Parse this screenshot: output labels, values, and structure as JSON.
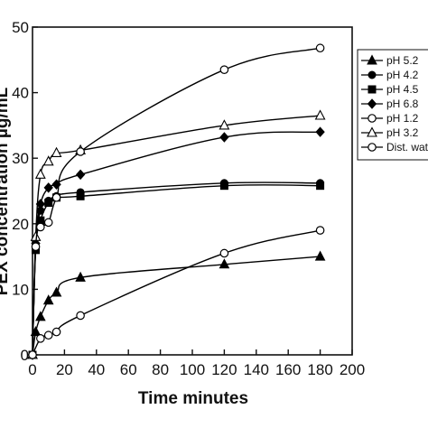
{
  "chart_data": {
    "type": "line",
    "title": "",
    "xlabel": "Time minutes",
    "ylabel": "PEX concentration µg/mL",
    "xlim": [
      0,
      200
    ],
    "ylim": [
      0,
      50
    ],
    "xticks": [
      "0",
      "20",
      "40",
      "60",
      "80",
      "100",
      "120",
      "140",
      "160",
      "180",
      "200"
    ],
    "yticks": [
      "0",
      "10",
      "20",
      "30",
      "40",
      "50"
    ],
    "grid": false,
    "legend_position": "right",
    "series": [
      {
        "name": "pH 5.2",
        "marker": "triangle-filled",
        "x": [
          0,
          2,
          5,
          10,
          15,
          30,
          120,
          180
        ],
        "y": [
          0,
          3.5,
          5.8,
          8.3,
          9.5,
          11.8,
          13.8,
          15.0
        ]
      },
      {
        "name": "pH 4.2",
        "marker": "circle-filled",
        "x": [
          0,
          2,
          5,
          10,
          15,
          30,
          120,
          180
        ],
        "y": [
          0,
          16.5,
          22.0,
          23.5,
          24.2,
          24.8,
          26.2,
          26.2
        ]
      },
      {
        "name": "pH 4.5",
        "marker": "square-filled",
        "x": [
          0,
          2,
          5,
          10,
          15,
          30,
          120,
          180
        ],
        "y": [
          0,
          16.0,
          20.5,
          23.2,
          24.0,
          24.2,
          25.8,
          25.8
        ]
      },
      {
        "name": "pH 6.8",
        "marker": "diamond-filled",
        "x": [
          0,
          2,
          5,
          10,
          15,
          30,
          120,
          180
        ],
        "y": [
          0,
          17.0,
          23.0,
          25.5,
          26.0,
          27.5,
          33.2,
          34.0
        ]
      },
      {
        "name": "pH 1.2",
        "marker": "circle-open",
        "x": [
          0,
          5,
          10,
          15,
          30,
          120,
          180
        ],
        "y": [
          0,
          2.5,
          3.0,
          3.5,
          6.0,
          15.5,
          19.0
        ]
      },
      {
        "name": "pH  3.2",
        "marker": "triangle-open",
        "x": [
          0,
          2,
          5,
          10,
          15,
          30,
          120,
          180
        ],
        "y": [
          0,
          18.0,
          27.5,
          29.5,
          30.8,
          31.2,
          35.0,
          36.5
        ]
      },
      {
        "name": "Dist. water",
        "marker": "circle-open",
        "x": [
          0,
          2,
          5,
          10,
          15,
          30,
          120,
          180
        ],
        "y": [
          0,
          16.5,
          19.5,
          20.2,
          24.0,
          31.0,
          43.5,
          46.8
        ]
      }
    ]
  }
}
